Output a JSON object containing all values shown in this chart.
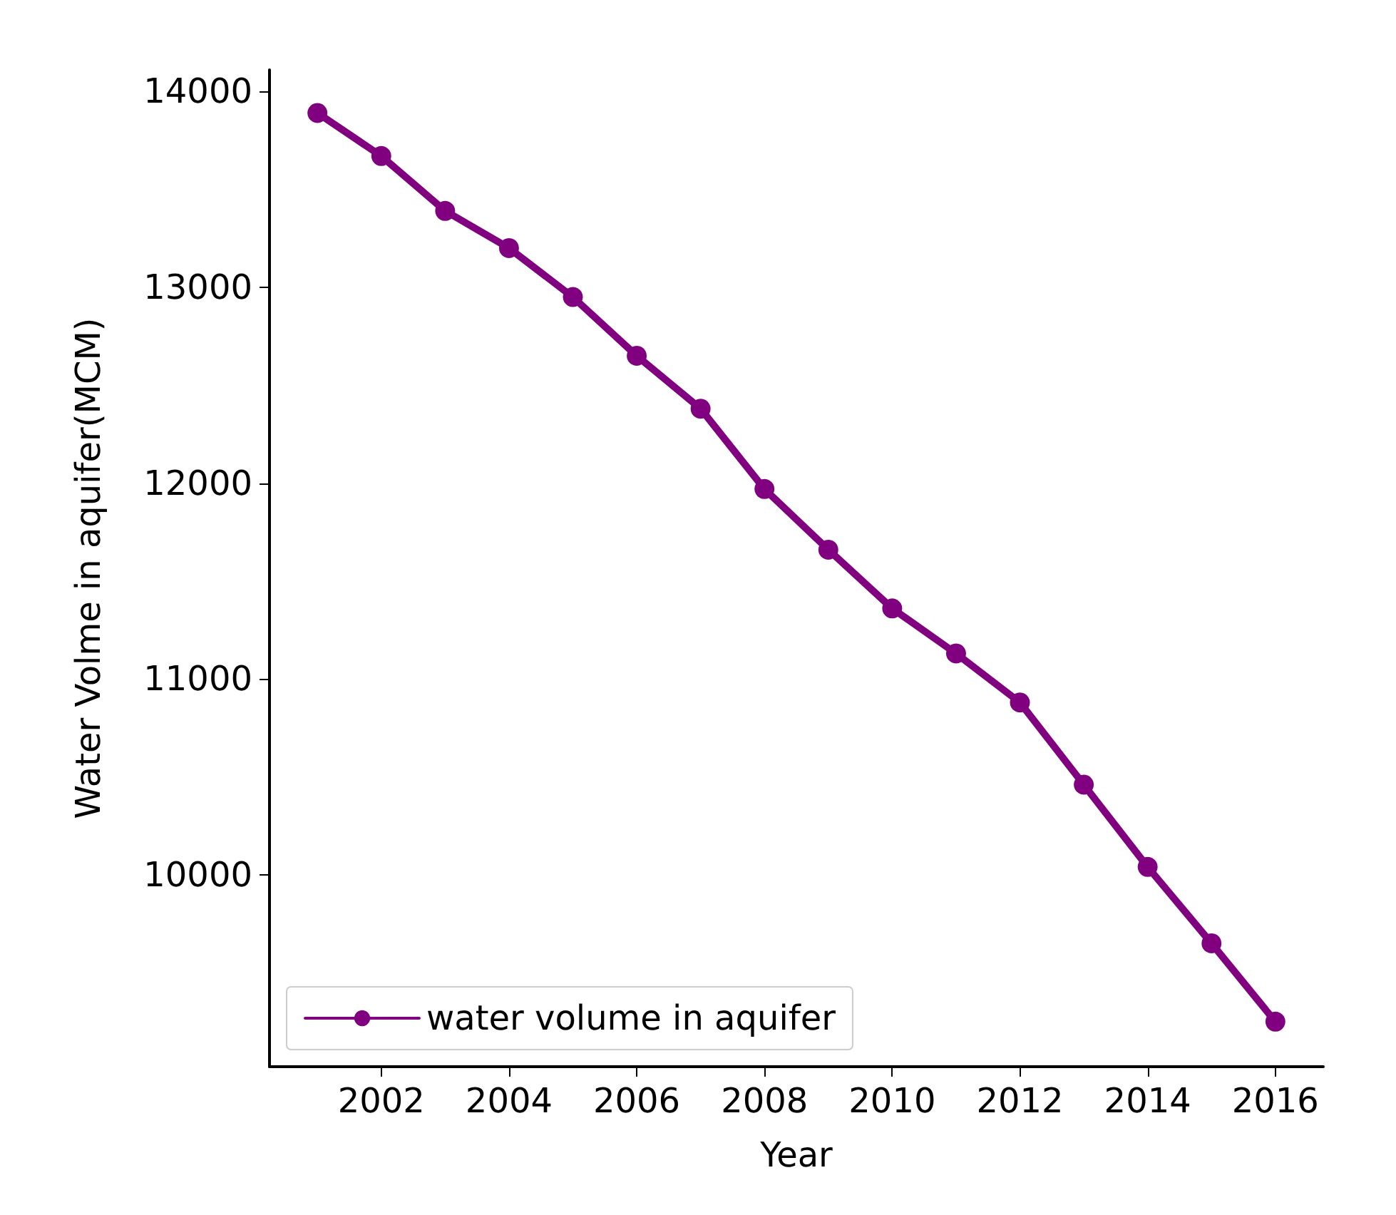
{
  "chart_data": {
    "type": "line",
    "xlabel": "Year",
    "ylabel": "Water Volme in aquifer(MCM)",
    "x": [
      2001,
      2002,
      2003,
      2004,
      2005,
      2006,
      2007,
      2008,
      2009,
      2010,
      2011,
      2012,
      2013,
      2014,
      2015,
      2016
    ],
    "series": [
      {
        "name": "water volume in aquifer",
        "color": "#800080",
        "values": [
          13890,
          13670,
          13390,
          13200,
          12950,
          12650,
          12380,
          11970,
          11660,
          11360,
          11130,
          10880,
          10460,
          10040,
          9650,
          9250
        ]
      }
    ],
    "xlim": [
      2000.25,
      2016.75
    ],
    "xticks": [
      2002,
      2004,
      2006,
      2008,
      2010,
      2012,
      2014,
      2016
    ],
    "ylim": [
      9020,
      14110
    ],
    "yticks": [
      10000,
      11000,
      12000,
      13000,
      14000
    ],
    "grid": false,
    "legend": "bottom left",
    "marker": "circle",
    "line_style": "solid"
  }
}
